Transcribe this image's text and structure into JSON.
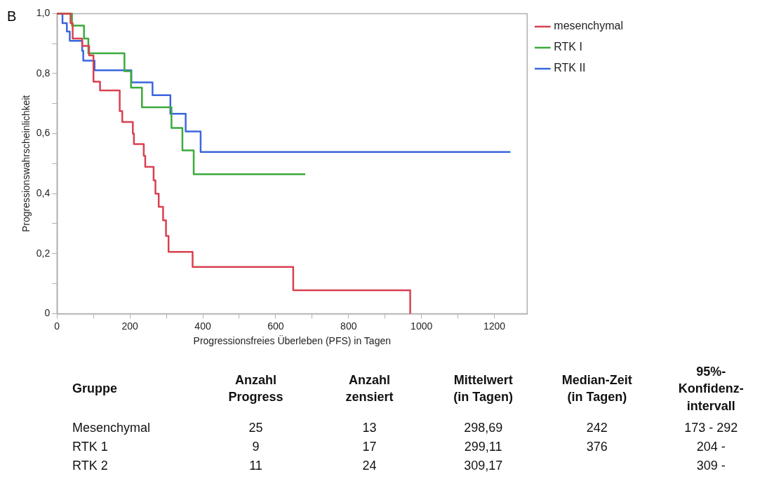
{
  "chart_data": {
    "type": "step",
    "xlabel": "Progressionsfreies Überleben (PFS) in Tagen",
    "ylabel": "Progressionswahrscheinlichkeit",
    "xlim": [
      0,
      1290
    ],
    "ylim": [
      0,
      1
    ],
    "xticks": [
      0,
      {
        "value": 100,
        "label": null
      },
      200,
      {
        "value": 300,
        "label": null
      },
      400,
      {
        "value": 500,
        "label": null
      },
      600,
      {
        "value": 700,
        "label": null
      },
      800,
      {
        "value": 900,
        "label": null
      },
      1000,
      {
        "value": 1100,
        "label": null
      },
      1200
    ],
    "yticks": [
      0,
      {
        "value": 0.1,
        "label": null
      },
      {
        "value": 0.2,
        "label": "0,2"
      },
      {
        "value": 0.3,
        "label": null
      },
      {
        "value": 0.4,
        "label": "0,4"
      },
      {
        "value": 0.5,
        "label": null
      },
      {
        "value": 0.6,
        "label": "0,6"
      },
      {
        "value": 0.7,
        "label": null
      },
      {
        "value": 0.8,
        "label": "0,8"
      },
      {
        "value": 0.9,
        "label": null
      },
      {
        "value": 1,
        "label": "1,0"
      }
    ],
    "grid": false,
    "legend": "top right",
    "marker": "none",
    "line_style": "solid",
    "series": [
      {
        "name": "mesenchymal",
        "color": "#d94050",
        "x": [
          0,
          37,
          43,
          69,
          88,
          100,
          118,
          172,
          179,
          208,
          211,
          238,
          242,
          265,
          270,
          279,
          291,
          299,
          306,
          372,
          648,
          969
        ],
        "values": [
          1,
          0.968,
          0.917,
          0.892,
          0.861,
          0.773,
          0.744,
          0.675,
          0.639,
          0.6,
          0.565,
          0.526,
          0.489,
          0.444,
          0.4,
          0.356,
          0.311,
          0.259,
          0.206,
          0.156,
          0.078,
          0
        ]
      },
      {
        "name": "RTK I",
        "color": "#3aaa3a",
        "x": [
          0,
          41,
          74,
          86,
          185,
          203,
          233,
          314,
          344,
          375,
          681
        ],
        "values": [
          1,
          0.96,
          0.917,
          0.868,
          0.808,
          0.753,
          0.688,
          0.619,
          0.544,
          0.465,
          0.465
        ]
      },
      {
        "name": "RTK II",
        "color": "#3a66dd",
        "x": [
          0,
          15,
          27,
          35,
          69,
          72,
          103,
          204,
          262,
          311,
          353,
          394,
          1244
        ],
        "values": [
          1,
          0.968,
          0.94,
          0.909,
          0.876,
          0.843,
          0.811,
          0.771,
          0.728,
          0.666,
          0.607,
          0.539,
          0.539
        ]
      }
    ],
    "annotations": [
      "B",
      "Gruppe\tAnzahl\nProgress\tAnzahl\nzensiert\tMittelwert\n(in Tagen)\tMedian-Zeit\n(in Tagen)\t95%-\nKonfidenz-\nintervall",
      "Mesenchymal\t25\t13\t298,69\t242\t173 - 292",
      "RTK 1\t9\t17\t299,11\t376\t204 -",
      "RTK 2\t11\t24\t309,17\t\t309 -"
    ]
  }
}
